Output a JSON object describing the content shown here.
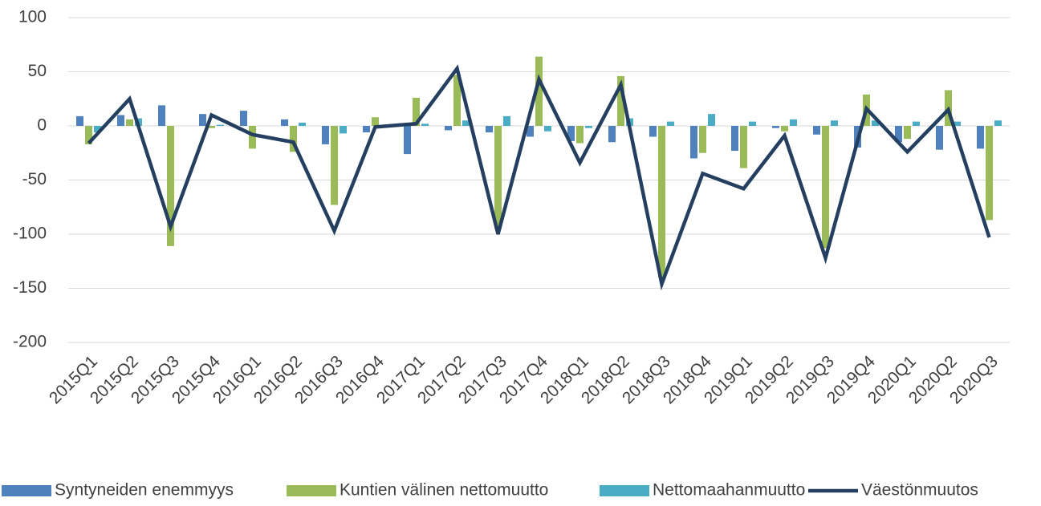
{
  "chart_data": {
    "type": "bar-line",
    "categories": [
      "2015Q1",
      "2015Q2",
      "2015Q3",
      "2015Q4",
      "2016Q1",
      "2016Q2",
      "2016Q3",
      "2016Q4",
      "2017Q1",
      "2017Q2",
      "2017Q3",
      "2017Q4",
      "2018Q1",
      "2018Q2",
      "2018Q3",
      "2018Q4",
      "2019Q1",
      "2019Q2",
      "2019Q3",
      "2019Q4",
      "2020Q1",
      "2020Q2",
      "2020Q3"
    ],
    "series": [
      {
        "name": "Syntyneiden enemmyys",
        "type": "bar",
        "color": "#4f81bd",
        "values": [
          9,
          10,
          19,
          11,
          14,
          6,
          -17,
          -6,
          -26,
          -4,
          -6,
          -10,
          -14,
          -15,
          -10,
          -30,
          -23,
          -2,
          -8,
          -20,
          -15,
          -22,
          -21
        ]
      },
      {
        "name": "Kuntien välinen nettomuutto",
        "type": "bar",
        "color": "#9bbb59",
        "values": [
          -17,
          6,
          -111,
          -2,
          -21,
          -24,
          -73,
          8,
          26,
          47,
          -95,
          64,
          -16,
          46,
          -140,
          -25,
          -39,
          -5,
          -113,
          29,
          -12,
          33,
          -87
        ]
      },
      {
        "name": "Nettomaahanmuutto",
        "type": "bar",
        "color": "#4bacc6",
        "values": [
          -6,
          7,
          0,
          1,
          0,
          3,
          -7,
          0,
          2,
          5,
          9,
          -5,
          -2,
          7,
          4,
          11,
          4,
          6,
          5,
          5,
          4,
          4,
          5
        ]
      },
      {
        "name": "Väestönmuutos",
        "type": "line",
        "color": "#243f60",
        "values": [
          -16,
          25,
          -93,
          10,
          -8,
          -15,
          -97,
          -1,
          2,
          53,
          -100,
          43,
          -34,
          38,
          -146,
          -44,
          -58,
          -9,
          -122,
          16,
          -24,
          15,
          -103
        ]
      }
    ],
    "ylim": [
      -200,
      100
    ],
    "yticks": [
      -200,
      -150,
      -100,
      -50,
      0,
      50,
      100
    ],
    "grid": true,
    "legend": "bottom"
  }
}
